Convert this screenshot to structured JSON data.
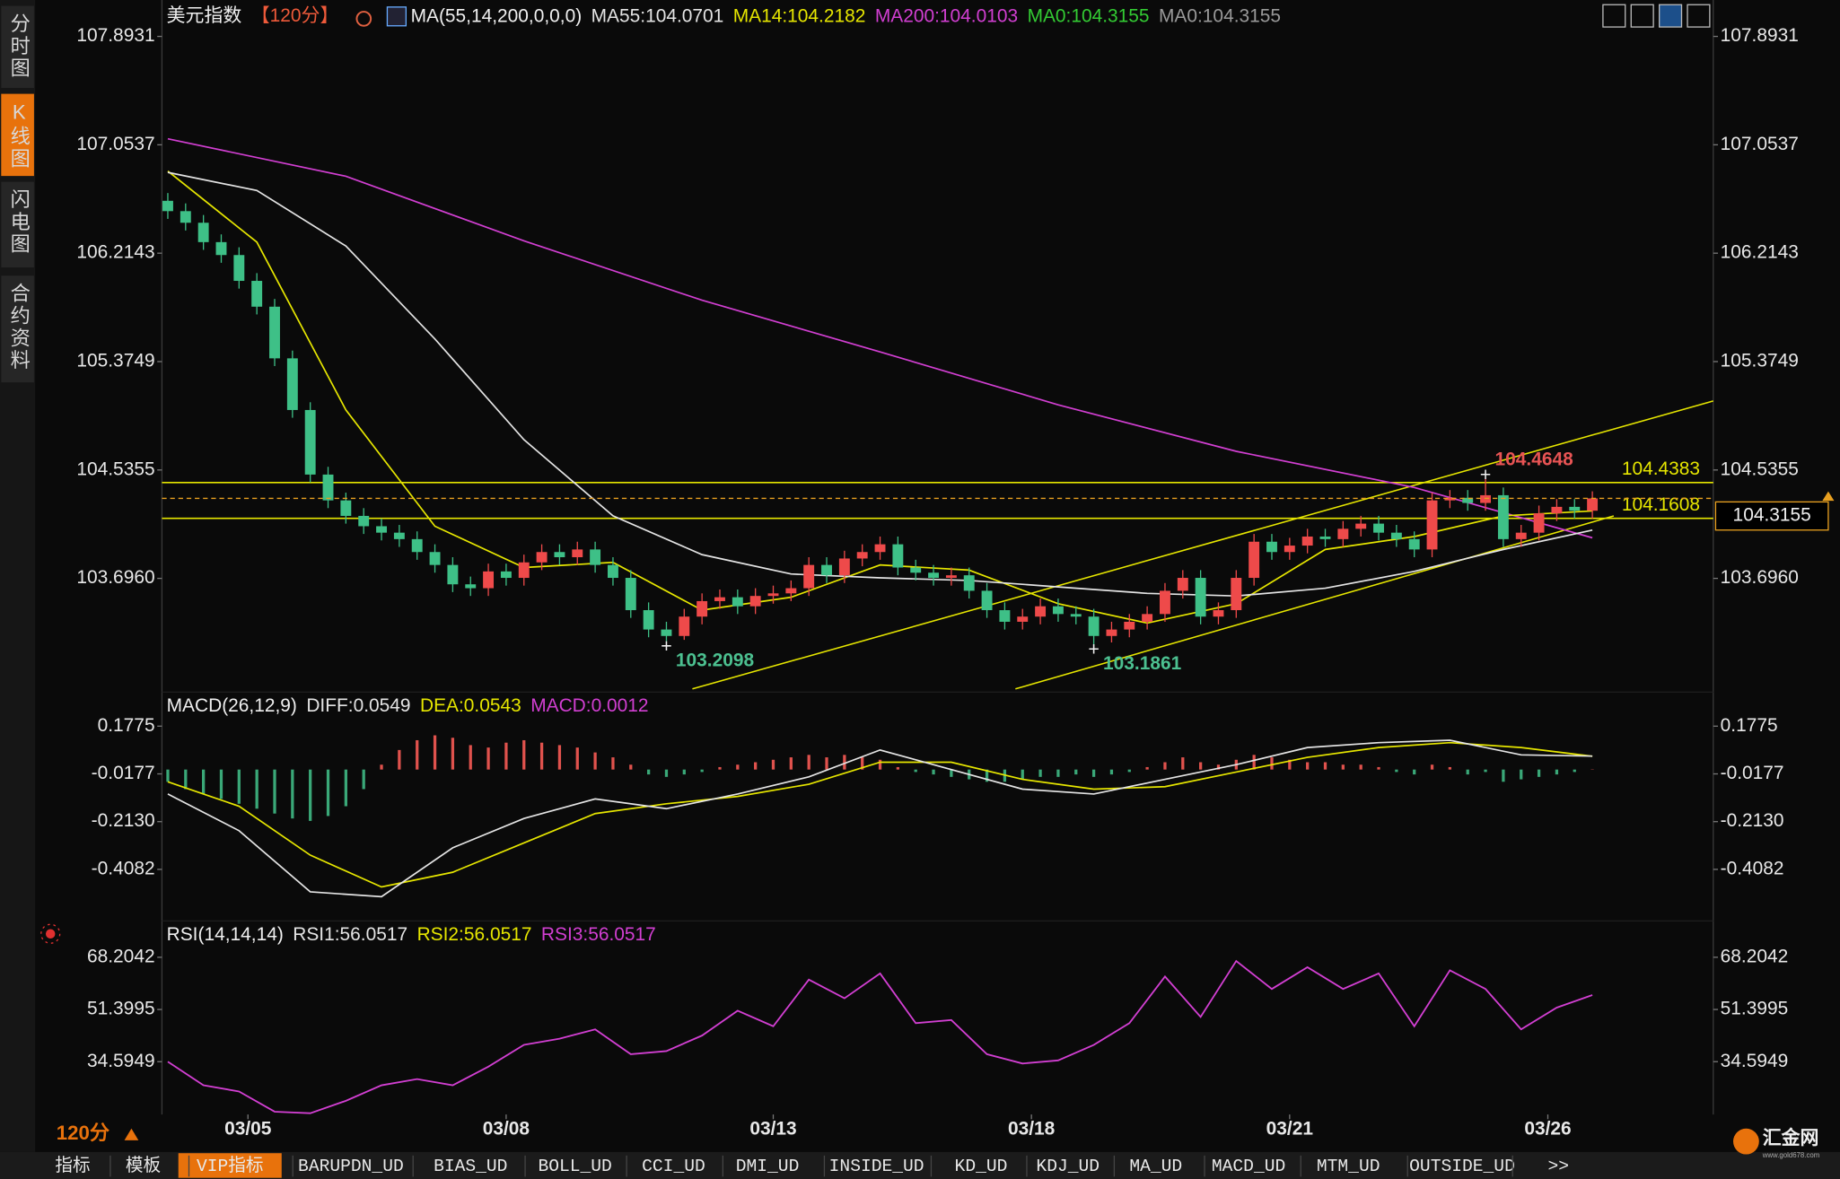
{
  "sidebar": [
    "分时图",
    "K线图",
    "闪电图",
    "合约资料"
  ],
  "period": "120分",
  "tabs": [
    "指标",
    "模板",
    "VIP指标",
    "BARUPDN_UD",
    "BIAS_UD",
    "BOLL_UD",
    "CCI_UD",
    "DMI_UD",
    "INSIDE_UD",
    "KD_UD",
    "KDJ_UD",
    "MA_UD",
    "MACD_UD",
    "MTM_UD",
    "OUTSIDE_UD",
    ">>"
  ],
  "logo": "汇金网",
  "logo_url": "www.gold678.com",
  "chart_data": [
    {
      "type": "candlestick",
      "title": "美元指数",
      "period_tag": "【120分】",
      "subtitle": "MA(55,14,200,0,0,0)",
      "up_color": "#ee4a4a",
      "down_color": "#3ec087",
      "ohlc": [
        [
          106.62,
          106.68,
          106.48,
          106.54
        ],
        [
          106.54,
          106.6,
          106.39,
          106.45
        ],
        [
          106.45,
          106.51,
          106.24,
          106.3
        ],
        [
          106.3,
          106.36,
          106.14,
          106.2
        ],
        [
          106.2,
          106.26,
          105.94,
          106
        ],
        [
          106,
          106.06,
          105.74,
          105.8
        ],
        [
          105.8,
          105.86,
          105.34,
          105.4
        ],
        [
          105.4,
          105.46,
          104.94,
          105
        ],
        [
          105,
          105.06,
          104.44,
          104.5
        ],
        [
          104.5,
          104.56,
          104.24,
          104.3
        ],
        [
          104.3,
          104.36,
          104.12,
          104.18
        ],
        [
          104.18,
          104.24,
          104.04,
          104.1
        ],
        [
          104.1,
          104.16,
          103.99,
          104.05
        ],
        [
          104.05,
          104.11,
          103.94,
          104
        ],
        [
          104,
          104.06,
          103.84,
          103.9
        ],
        [
          103.9,
          103.96,
          103.74,
          103.8
        ],
        [
          103.8,
          103.86,
          103.59,
          103.65
        ],
        [
          103.65,
          103.71,
          103.56,
          103.62
        ],
        [
          103.62,
          103.81,
          103.56,
          103.75
        ],
        [
          103.75,
          103.81,
          103.64,
          103.7
        ],
        [
          103.7,
          103.88,
          103.64,
          103.82
        ],
        [
          103.82,
          103.96,
          103.76,
          103.9
        ],
        [
          103.9,
          103.96,
          103.8,
          103.86
        ],
        [
          103.86,
          103.98,
          103.8,
          103.92
        ],
        [
          103.92,
          103.98,
          103.74,
          103.8
        ],
        [
          103.8,
          103.86,
          103.64,
          103.7
        ],
        [
          103.7,
          103.76,
          103.39,
          103.45
        ],
        [
          103.45,
          103.51,
          103.24,
          103.3
        ],
        [
          103.3,
          103.36,
          103.2098,
          103.25
        ],
        [
          103.25,
          103.46,
          103.22,
          103.4
        ],
        [
          103.4,
          103.58,
          103.34,
          103.52
        ],
        [
          103.52,
          103.61,
          103.46,
          103.55
        ],
        [
          103.55,
          103.61,
          103.42,
          103.48
        ],
        [
          103.48,
          103.62,
          103.42,
          103.56
        ],
        [
          103.56,
          103.64,
          103.5,
          103.58
        ],
        [
          103.58,
          103.68,
          103.52,
          103.62
        ],
        [
          103.62,
          103.86,
          103.56,
          103.8
        ],
        [
          103.8,
          103.86,
          103.66,
          103.72
        ],
        [
          103.72,
          103.91,
          103.66,
          103.85
        ],
        [
          103.85,
          103.96,
          103.79,
          103.9
        ],
        [
          103.9,
          104.02,
          103.84,
          103.96
        ],
        [
          103.96,
          104.02,
          103.72,
          103.78
        ],
        [
          103.78,
          103.84,
          103.68,
          103.74
        ],
        [
          103.74,
          103.8,
          103.64,
          103.7
        ],
        [
          103.7,
          103.78,
          103.64,
          103.72
        ],
        [
          103.72,
          103.78,
          103.54,
          103.6
        ],
        [
          103.6,
          103.66,
          103.39,
          103.45
        ],
        [
          103.45,
          103.51,
          103.3,
          103.36
        ],
        [
          103.36,
          103.46,
          103.3,
          103.4
        ],
        [
          103.4,
          103.54,
          103.34,
          103.48
        ],
        [
          103.48,
          103.54,
          103.36,
          103.42
        ],
        [
          103.42,
          103.48,
          103.34,
          103.4
        ],
        [
          103.4,
          103.46,
          103.1861,
          103.25
        ],
        [
          103.25,
          103.36,
          103.2,
          103.3
        ],
        [
          103.3,
          103.42,
          103.24,
          103.36
        ],
        [
          103.36,
          103.48,
          103.3,
          103.42
        ],
        [
          103.42,
          103.66,
          103.36,
          103.6
        ],
        [
          103.6,
          103.76,
          103.54,
          103.7
        ],
        [
          103.7,
          103.76,
          103.34,
          103.4
        ],
        [
          103.4,
          103.51,
          103.34,
          103.45
        ],
        [
          103.45,
          103.76,
          103.39,
          103.7
        ],
        [
          103.7,
          104.04,
          103.64,
          103.98
        ],
        [
          103.98,
          104.04,
          103.84,
          103.9
        ],
        [
          103.9,
          104.01,
          103.84,
          103.95
        ],
        [
          103.95,
          104.08,
          103.89,
          104.02
        ],
        [
          104.02,
          104.08,
          103.94,
          104
        ],
        [
          104,
          104.14,
          103.94,
          104.08
        ],
        [
          104.08,
          104.18,
          104.02,
          104.12
        ],
        [
          104.12,
          104.18,
          103.99,
          104.05
        ],
        [
          104.05,
          104.11,
          103.94,
          104
        ],
        [
          104,
          104.06,
          103.86,
          103.92
        ],
        [
          103.92,
          104.36,
          103.86,
          104.3
        ],
        [
          104.3,
          104.38,
          104.24,
          104.32
        ],
        [
          104.32,
          104.38,
          104.22,
          104.28
        ],
        [
          104.28,
          104.4648,
          104.22,
          104.34
        ],
        [
          104.34,
          104.4,
          103.94,
          104
        ],
        [
          104,
          104.11,
          103.94,
          104.05
        ],
        [
          104.05,
          104.26,
          103.99,
          104.2
        ],
        [
          104.2,
          104.31,
          104.14,
          104.25
        ],
        [
          104.25,
          104.31,
          104.16,
          104.22
        ],
        [
          104.22,
          104.37,
          104.16,
          104.3155
        ]
      ],
      "series": [
        {
          "name": "MA55:",
          "color": "#e4e4e4",
          "x": [
            0,
            5,
            10,
            15,
            20,
            25,
            30,
            35,
            40,
            45,
            50,
            55,
            60,
            65,
            70,
            75,
            80
          ],
          "values": [
            106.84,
            106.7,
            106.27,
            105.55,
            104.77,
            104.18,
            103.88,
            103.73,
            103.7,
            103.68,
            103.63,
            103.58,
            103.56,
            103.62,
            103.75,
            103.92,
            104.0701
          ]
        },
        {
          "name": "MA14:",
          "color": "#e6e600",
          "x": [
            0,
            5,
            10,
            15,
            20,
            25,
            30,
            35,
            40,
            45,
            50,
            55,
            60,
            65,
            70,
            75,
            80
          ],
          "values": [
            106.85,
            106.3,
            105,
            104.1,
            103.78,
            103.82,
            103.45,
            103.55,
            103.8,
            103.76,
            103.5,
            103.35,
            103.5,
            103.92,
            104.02,
            104.18,
            104.2182
          ]
        },
        {
          "name": "MA200:",
          "color": "#d23fd2",
          "x": [
            0,
            10,
            20,
            30,
            40,
            50,
            60,
            70,
            80
          ],
          "values": [
            107.1,
            106.81,
            106.31,
            105.85,
            105.45,
            105.04,
            104.68,
            104.4,
            104.0103
          ]
        }
      ],
      "legend_extra": [
        {
          "name": "MA0:",
          "color": "#33cc33"
        },
        {
          "name": "MA0:",
          "color": "#9a9a9a"
        }
      ],
      "hlines": {
        "color": "#e6e600",
        "values": [
          104.4383,
          104.1608
        ]
      },
      "trendlines": {
        "color": "#e6e600",
        "lines": [
          {
            "x": [
              29.46,
              86.79
            ],
            "values": [
              102.84,
              105.07
            ]
          },
          {
            "x": [
              47.6,
              81.2
            ],
            "values": [
              102.84,
              104.18
            ]
          }
        ]
      },
      "high_color": "#e85454",
      "low_color": "#4cc090",
      "last_color": "#e8a020",
      "ylim": [
        102.815,
        108.175
      ],
      "yticks": [
        107.8931,
        107.0537,
        106.2143,
        105.3749,
        104.5355,
        {
          "value": 103.696,
          "label": "103.6960"
        }
      ],
      "xlim": [
        -0.33,
        86.79
      ]
    },
    {
      "type": "macd",
      "title": "MACD(26,12,9)",
      "series": [
        {
          "name": "DIFF:",
          "color": "#e4e4e4",
          "x": [
            0,
            4,
            8,
            12,
            16,
            20,
            24,
            28,
            32,
            36,
            40,
            44,
            48,
            52,
            56,
            60,
            64,
            68,
            72,
            76,
            80
          ],
          "values": [
            -0.1,
            -0.25,
            -0.5,
            -0.52,
            -0.32,
            -0.2,
            -0.12,
            -0.16,
            -0.1,
            -0.03,
            0.08,
            0,
            -0.08,
            -0.1,
            -0.04,
            0.02,
            0.09,
            0.11,
            0.12,
            0.06,
            0.0549
          ]
        },
        {
          "name": "DEA:",
          "color": "#e6e600",
          "x": [
            0,
            4,
            8,
            12,
            16,
            20,
            24,
            28,
            32,
            36,
            40,
            44,
            48,
            52,
            56,
            60,
            64,
            68,
            72,
            76,
            80
          ],
          "values": [
            -0.05,
            -0.15,
            -0.35,
            -0.48,
            -0.42,
            -0.3,
            -0.18,
            -0.14,
            -0.11,
            -0.06,
            0.03,
            0.03,
            -0.04,
            -0.08,
            -0.07,
            -0.01,
            0.05,
            0.09,
            0.11,
            0.09,
            0.0543
          ]
        },
        {
          "name": "MACD:",
          "color": "#d23fd2",
          "up_color": "#e0524d",
          "down_color": "#3aa878",
          "values": [
            -0.05,
            -0.08,
            -0.1,
            -0.12,
            -0.14,
            -0.16,
            -0.18,
            -0.2,
            -0.21,
            -0.19,
            -0.15,
            -0.08,
            0.02,
            0.08,
            0.12,
            0.14,
            0.13,
            0.1,
            0.09,
            0.11,
            0.12,
            0.11,
            0.1,
            0.09,
            0.07,
            0.05,
            0.02,
            -0.02,
            -0.03,
            -0.02,
            -0.01,
            0.01,
            0.02,
            0.03,
            0.04,
            0.05,
            0.06,
            0.05,
            0.06,
            0.05,
            0.04,
            0.01,
            -0.01,
            -0.02,
            -0.03,
            -0.04,
            -0.05,
            -0.05,
            -0.04,
            -0.03,
            -0.03,
            -0.02,
            -0.03,
            -0.02,
            -0.01,
            0.01,
            0.03,
            0.05,
            0.03,
            0.02,
            0.04,
            0.06,
            0.05,
            0.04,
            0.03,
            0.03,
            0.02,
            0.02,
            0.01,
            -0.01,
            -0.02,
            0.02,
            0.01,
            -0.02,
            -0.01,
            -0.05,
            -0.04,
            -0.03,
            -0.02,
            -0.01,
            0.0012
          ]
        }
      ],
      "ylim": [
        -0.619,
        0.3166
      ],
      "yticks": [
        0.1775,
        -0.0177,
        {
          "value": -0.213,
          "label": "-0.2130"
        },
        -0.4082
      ],
      "xlim": [
        -0.33,
        86.79
      ]
    },
    {
      "type": "rsi",
      "title": "RSI(14,14,14)",
      "series": [
        {
          "name": "RSI1:",
          "color": "#e4e4e4",
          "x": [
            0,
            2,
            4,
            6,
            8,
            10,
            12,
            14,
            16,
            18,
            20,
            22,
            24,
            26,
            28,
            30,
            32,
            34,
            36,
            38,
            40,
            42,
            44,
            46,
            48,
            50,
            52,
            54,
            56,
            58,
            60,
            62,
            64,
            66,
            68,
            70,
            72,
            74,
            76,
            78,
            80
          ],
          "values": [
            34.6,
            27,
            25,
            18.5,
            18,
            22,
            27,
            29,
            27,
            33,
            40,
            42,
            45,
            37,
            38,
            43,
            51,
            46,
            61,
            55,
            63,
            47,
            48,
            37,
            34,
            35,
            40,
            47,
            62,
            49,
            67,
            58,
            65,
            58,
            63,
            46,
            64,
            58,
            45,
            52,
            56.0517
          ]
        }
      ],
      "legend_extra": [
        {
          "name": "RSI2:",
          "color": "#e6e600"
        },
        {
          "name": "RSI3:",
          "color": "#d23fd2"
        }
      ],
      "ylim": [
        17.6,
        79.91
      ],
      "yticks": [
        68.2042,
        51.3995,
        34.5949
      ],
      "xlim": [
        -0.33,
        86.79
      ],
      "xticks": [
        {
          "value": 4.5,
          "label": "03/05"
        },
        {
          "value": 19,
          "label": "03/08"
        },
        {
          "value": 34,
          "label": "03/13"
        },
        {
          "value": 48.5,
          "label": "03/18"
        },
        {
          "value": 63,
          "label": "03/21"
        },
        {
          "value": 77.5,
          "label": "03/26"
        }
      ]
    }
  ]
}
